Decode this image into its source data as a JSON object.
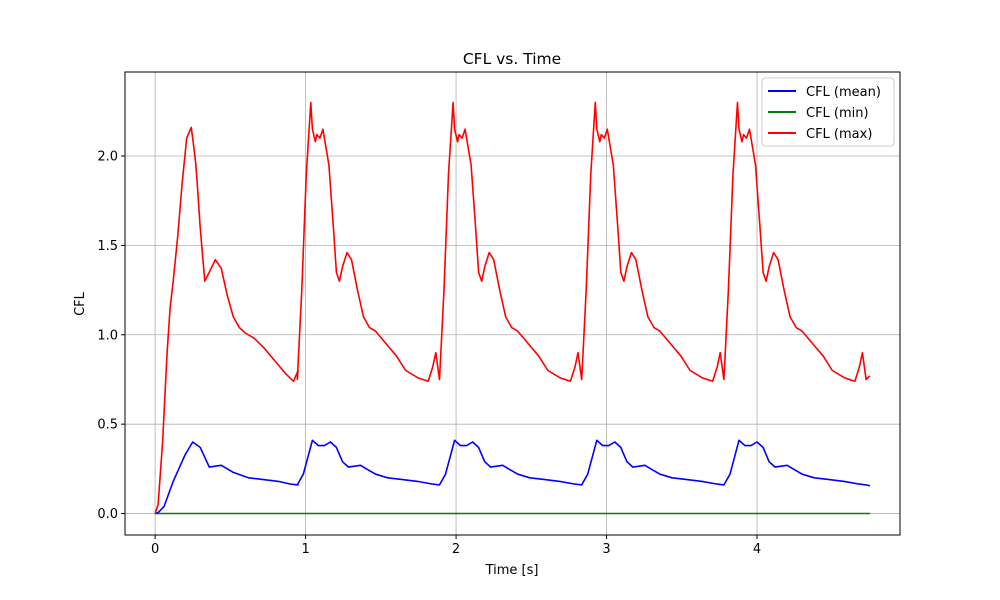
{
  "chart_data": {
    "type": "line",
    "title": "CFL vs. Time",
    "xlabel": "Time [s]",
    "ylabel": "CFL",
    "xlim": [
      -0.2,
      4.95
    ],
    "ylim": [
      -0.12,
      2.47
    ],
    "xticks": [
      0,
      1,
      2,
      3,
      4
    ],
    "xtick_labels": [
      "0",
      "1",
      "2",
      "3",
      "4"
    ],
    "yticks": [
      0.0,
      0.5,
      1.0,
      1.5,
      2.0
    ],
    "ytick_labels": [
      "0.0",
      "0.5",
      "1.0",
      "1.5",
      "2.0"
    ],
    "grid": true,
    "legend_position": "top-right",
    "period": 0.945,
    "series": [
      {
        "name": "CFL (mean)",
        "color": "#0000ff",
        "x": [
          0,
          0.02,
          0.06,
          0.12,
          0.2,
          0.25,
          0.3,
          0.36,
          0.44,
          0.52,
          0.62,
          0.72,
          0.82,
          0.9,
          0.95
        ],
        "values": [
          0,
          0.005,
          0.04,
          0.18,
          0.33,
          0.4,
          0.37,
          0.26,
          0.27,
          0.23,
          0.2,
          0.19,
          0.18,
          0.165,
          0.16
        ],
        "cycle_x": [
          0,
          0.04,
          0.1,
          0.14,
          0.18,
          0.22,
          0.26,
          0.3,
          0.34,
          0.38,
          0.42,
          0.46,
          0.52,
          0.6,
          0.7,
          0.8,
          0.9,
          0.945
        ],
        "cycle_values": [
          0.16,
          0.22,
          0.41,
          0.38,
          0.38,
          0.4,
          0.37,
          0.29,
          0.26,
          0.265,
          0.27,
          0.25,
          0.22,
          0.2,
          0.19,
          0.18,
          0.165,
          0.16
        ],
        "end_x": 4.75,
        "end_value": 0.155
      },
      {
        "name": "CFL (min)",
        "color": "#008000",
        "x": [
          0,
          4.75
        ],
        "values": [
          0,
          0
        ]
      },
      {
        "name": "CFL (max)",
        "color": "#ff0000",
        "x": [
          0,
          0.02,
          0.05,
          0.08,
          0.1,
          0.12,
          0.15,
          0.18,
          0.21,
          0.24,
          0.25,
          0.27,
          0.28,
          0.3,
          0.33,
          0.36,
          0.4,
          0.44,
          0.48,
          0.52,
          0.56,
          0.6,
          0.66,
          0.72,
          0.8,
          0.87,
          0.92,
          0.95
        ],
        "values": [
          0,
          0.05,
          0.4,
          0.9,
          1.15,
          1.3,
          1.55,
          1.85,
          2.1,
          2.16,
          2.1,
          1.96,
          1.85,
          1.6,
          1.3,
          1.35,
          1.42,
          1.37,
          1.22,
          1.1,
          1.04,
          1.01,
          0.98,
          0.93,
          0.85,
          0.78,
          0.74,
          0.8
        ],
        "cycle_x": [
          0,
          0.03,
          0.06,
          0.09,
          0.1,
          0.12,
          0.13,
          0.15,
          0.17,
          0.19,
          0.2,
          0.21,
          0.24,
          0.26,
          0.28,
          0.3,
          0.33,
          0.36,
          0.4,
          0.44,
          0.48,
          0.52,
          0.56,
          0.6,
          0.66,
          0.72,
          0.8,
          0.87,
          0.9,
          0.92,
          0.945
        ],
        "cycle_values": [
          0.75,
          1.25,
          1.9,
          2.3,
          2.15,
          2.08,
          2.12,
          2.1,
          2.15,
          2.05,
          2.0,
          1.95,
          1.6,
          1.35,
          1.3,
          1.38,
          1.46,
          1.42,
          1.25,
          1.1,
          1.04,
          1.02,
          0.98,
          0.94,
          0.88,
          0.8,
          0.76,
          0.74,
          0.82,
          0.9,
          0.75
        ],
        "end_x": 4.75,
        "end_value": 0.77
      }
    ]
  }
}
